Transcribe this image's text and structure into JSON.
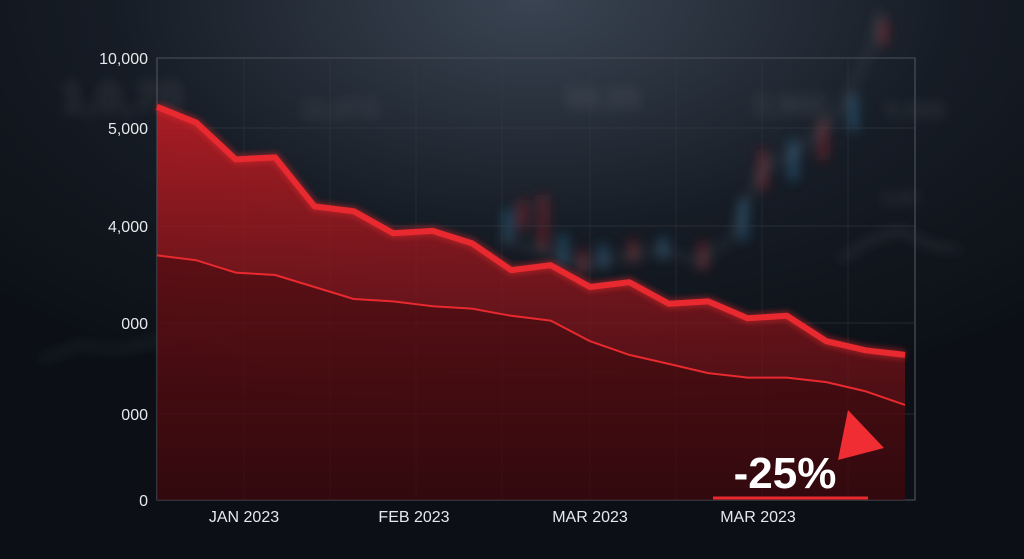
{
  "chart_data": {
    "type": "area",
    "y_tick_labels": [
      "10,000",
      "5,000",
      "4,000",
      "000",
      "000",
      "0"
    ],
    "x_tick_labels": [
      "JAN 2023",
      "FEB 2023",
      "MAR 2023",
      "MAR 2023"
    ],
    "series": [
      {
        "role": "upper",
        "values": [
          5400,
          5100,
          4680,
          4700,
          4200,
          4150,
          3850,
          3900,
          3650,
          3100,
          3200,
          2750,
          2850,
          2400,
          2450,
          2100,
          2150,
          1800,
          1700,
          1650
        ]
      },
      {
        "role": "lower",
        "values": [
          3400,
          3300,
          3050,
          3000,
          2750,
          2500,
          2450,
          2350,
          2300,
          2150,
          2050,
          1800,
          1650,
          1550,
          1450,
          1400,
          1400,
          1350,
          1250,
          1100
        ]
      }
    ],
    "callout": "-25%",
    "colors": {
      "line": "#e8292f",
      "fill": "#b3141b",
      "background": "#0f141b",
      "grid": "#3a4048",
      "axis_text": "#e6e8ec"
    },
    "grid": true,
    "background_text": [
      "1,0,70",
      "11,073",
      "58,55",
      "3,900",
      "5,500",
      "3,00"
    ]
  }
}
